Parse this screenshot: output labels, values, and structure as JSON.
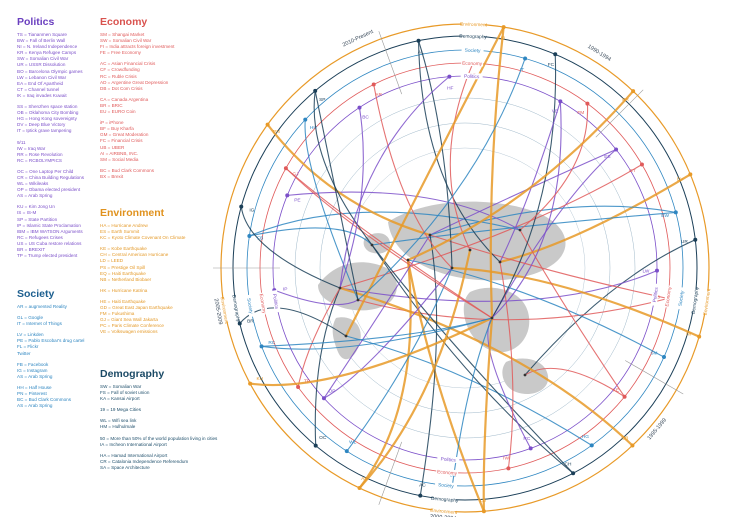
{
  "politics": {
    "title": "Politics",
    "groups": [
      [
        "TS = Tiananmen Square",
        "BW = Fall of Berlin Wall",
        "NI = N. Ireland Independence",
        "KR = Kenya Refugee Camps",
        "SW = Somalian Civil War",
        "UR = USSR Dissolution",
        "BO = Barcelona Olympic games",
        "LW = Lebanon Civil War",
        "EA = End Of Apartheid",
        "CT = Channel tunnel",
        "IK = Iraq invades Kuwait"
      ],
      [
        "SS = Shenzhen space station",
        "OB = Oklahoma City Bombing",
        "HG = Hong Kong sovereignty",
        "DV = Deep Blue Victory",
        "IT = Iptick grave tampering"
      ],
      [
        "9/11",
        "IW = Iraq War",
        "RR = Rose Revolution",
        "RC = RCBOLYMPICS"
      ],
      [
        "OC = One Laptop Per Child",
        "CR = China Building Regulations",
        "WL = Wikileaks",
        "OP = Obama elected president",
        "AS = Arab Spring"
      ],
      [
        "KU = Kim Jong Un",
        "IS = IS-M",
        "SP = State Partition",
        "IP = Islamic State Proclamation",
        "IBM = IBM WATSON Arguments",
        "RC = Refugees Crises",
        "US = US Cuba restore relations",
        "BR = BREXIT",
        "TP = Trump elected president"
      ]
    ]
  },
  "economy": {
    "title": "Economy",
    "groups": [
      [
        "SM = Shangai Market",
        "SW = Somalian Civil War",
        "FI = India attracts foreign investment",
        "FE = Free Economy"
      ],
      [
        "AC = Asian Financial Crisis",
        "CF = Crowdfunding",
        "RC = Ruble Crisis",
        "AD = Argentine Great Depression",
        "DB = Dot Com Crisis"
      ],
      [
        "CA = Canada Argentina",
        "BR = BRIC",
        "EU = EURO Coin"
      ],
      [
        "iP = iPhone",
        "BF = Buy Kharfa",
        "GM = Great Moderation",
        "FC = Financial Crisis",
        "UB = UBER",
        "AI = AIRBNB, INC.",
        "SM = Social Media"
      ],
      [
        "BC = Bud Clark Commons",
        "BX = Brexit"
      ]
    ]
  },
  "environment": {
    "title": "Environment",
    "groups": [
      [
        "HA = Hurricane Andrew",
        "ES = Earth Summit",
        "KC = Kyoto Climate Covenant On Climate"
      ],
      [
        "KE = Kobe Earthquake",
        "CH = Central American Hurricane",
        "LD = LEED",
        "PS = Prestige Oil Spill",
        "EQ = Haiti Earthquake",
        "NB = Netherland Biobaer"
      ],
      [
        "HK = Hurricane Katrina"
      ],
      [
        "HE = Haiti Earthquake",
        "GD = Great East Japan Earthquake",
        "FM = Fukushima",
        "GJ = Giant Sea Wall Jakarta",
        "PC = Paris Climate Conference",
        "VE = Volkswagen emissions"
      ]
    ]
  },
  "society": {
    "title": "Society",
    "groups": [
      [
        "AR = augmented Reality"
      ],
      [
        "GL = Google",
        "IT = Internet of Things"
      ],
      [
        "LV = Linkden",
        "PE = Pablo Escobar's drug cartel",
        "FL = Flickr",
        "Twitter"
      ],
      [
        "FB = Facebook",
        "IG = Instagram",
        "AS = Arab Spring"
      ],
      [
        "HH = Half House",
        "PN = Pinterest",
        "BC = Bud Clark Commons",
        "AS = Arab Spring"
      ]
    ]
  },
  "demography": {
    "title": "Demography",
    "groups": [
      [
        "SW = Somalian War",
        "FS = Fall of soviet union",
        "KA = Kansai Airport"
      ],
      [
        "19 = 19 Mega Cities"
      ],
      [
        "WL = Wifi sea link",
        "HM = Hulhulmale"
      ],
      [
        "50 = More than 50% of the world population living in cities",
        "IA = Incheon International Airport"
      ],
      [
        "HA = Hamad International Airport",
        "CR = Catalonia Independence Referendum",
        "SA = Space Architecture"
      ]
    ]
  },
  "diagram": {
    "periods": [
      "1990-1994",
      "1995-1999",
      "2000-2004",
      "2005-2009",
      "2010-Present"
    ],
    "category_rings": [
      "Environment",
      "Demography",
      "Society",
      "Economy",
      "Politics"
    ],
    "colors": {
      "politics": "#7b4fc9",
      "economy": "#e05a5a",
      "environment": "#e89a28",
      "society": "#2e86c1",
      "demography": "#1b3f58",
      "map": "#c9c9c9"
    },
    "sector_tags": [
      [
        "ES",
        "CT",
        "DV",
        "BW",
        "UR",
        "LW",
        "TS",
        "NI",
        "SM"
      ],
      [
        "KE",
        "OB",
        "HG",
        "CH",
        "RC",
        "IW",
        "LD",
        "SS",
        "AC"
      ],
      [
        "AS",
        "WL",
        "OC",
        "OP",
        "TP",
        "KU",
        "RC",
        "BR",
        "IP"
      ],
      [
        "FB",
        "IG",
        "PE",
        "GJ",
        "PN",
        "HH",
        "SP",
        "BC",
        "AR"
      ],
      [
        "AL",
        "HF",
        "CO",
        "UB",
        "IT",
        "FC",
        "VE",
        "FM",
        "BR"
      ]
    ]
  }
}
